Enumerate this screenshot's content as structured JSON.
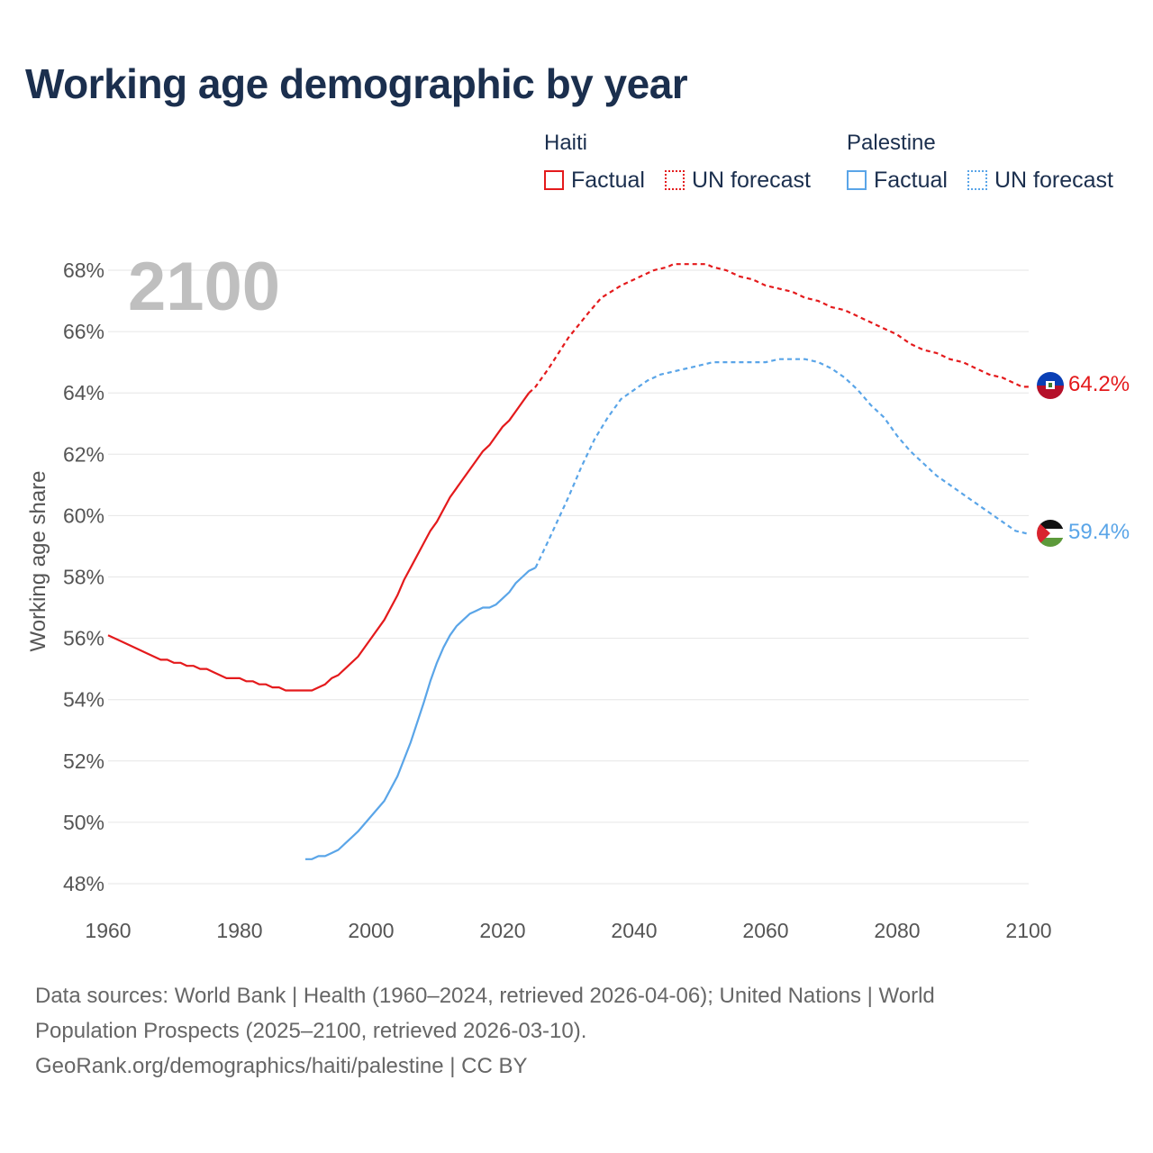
{
  "header": {
    "title": "Working age demographic by year"
  },
  "legend": {
    "groups": [
      {
        "name": "Haiti",
        "factual_label": "Factual",
        "forecast_label": "UN forecast"
      },
      {
        "name": "Palestine",
        "factual_label": "Factual",
        "forecast_label": "UN forecast"
      }
    ]
  },
  "colors": {
    "haiti": "#e41a1c",
    "palestine": "#5aa5e8",
    "grid": "#e6e6e6",
    "axis_text": "#555555",
    "year_watermark": "#bfbfbf"
  },
  "chart_data": {
    "type": "line",
    "title": "Working age demographic by year",
    "ylabel": "Working age share",
    "xlabel": "",
    "xlim": [
      1960,
      2100
    ],
    "ylim": [
      48,
      68
    ],
    "x_ticks": [
      1960,
      1980,
      2000,
      2020,
      2040,
      2060,
      2080,
      2100
    ],
    "x_tick_labels": [
      "1960",
      "1980",
      "2000",
      "2020",
      "2040",
      "2060",
      "2080",
      "2100"
    ],
    "y_ticks": [
      48,
      50,
      52,
      54,
      56,
      58,
      60,
      62,
      64,
      66,
      68
    ],
    "y_tick_labels": [
      "48%",
      "50%",
      "52%",
      "54%",
      "56%",
      "58%",
      "60%",
      "62%",
      "64%",
      "66%",
      "68%"
    ],
    "current_year": "2100",
    "series": [
      {
        "name": "Haiti",
        "color": "#e41a1c",
        "icon": "haiti-flag-icon",
        "end_label": "64.2%",
        "factual": {
          "x": [
            1960,
            1963,
            1966,
            1968,
            1969,
            1970,
            1971,
            1972,
            1973,
            1974,
            1975,
            1976,
            1978,
            1980,
            1981,
            1982,
            1983,
            1984,
            1985,
            1986,
            1987,
            1988,
            1990,
            1991,
            1993,
            1994,
            1995,
            1997,
            1998,
            2000,
            2002,
            2004,
            2005,
            2006,
            2008,
            2009,
            2010,
            2012,
            2013,
            2014,
            2016,
            2017,
            2018,
            2019,
            2020,
            2021,
            2022,
            2023,
            2024
          ],
          "y": [
            56.1,
            55.8,
            55.5,
            55.3,
            55.3,
            55.2,
            55.2,
            55.1,
            55.1,
            55.0,
            55.0,
            54.9,
            54.7,
            54.7,
            54.6,
            54.6,
            54.5,
            54.5,
            54.4,
            54.4,
            54.3,
            54.3,
            54.3,
            54.3,
            54.5,
            54.7,
            54.8,
            55.2,
            55.4,
            56.0,
            56.6,
            57.4,
            57.9,
            58.3,
            59.1,
            59.5,
            59.8,
            60.6,
            60.9,
            61.2,
            61.8,
            62.1,
            62.3,
            62.6,
            62.9,
            63.1,
            63.4,
            63.7,
            64.0
          ]
        },
        "forecast": {
          "x": [
            2024,
            2025,
            2027,
            2030,
            2033,
            2035,
            2038,
            2040,
            2043,
            2045,
            2046,
            2048,
            2050,
            2051,
            2052,
            2054,
            2056,
            2058,
            2060,
            2062,
            2064,
            2066,
            2068,
            2070,
            2072,
            2074,
            2076,
            2078,
            2080,
            2082,
            2084,
            2086,
            2088,
            2090,
            2092,
            2094,
            2096,
            2098,
            2099,
            2100
          ],
          "y": [
            64.0,
            64.2,
            64.8,
            65.8,
            66.6,
            67.1,
            67.5,
            67.7,
            68.0,
            68.1,
            68.2,
            68.2,
            68.2,
            68.2,
            68.1,
            68.0,
            67.8,
            67.7,
            67.5,
            67.4,
            67.3,
            67.1,
            67.0,
            66.8,
            66.7,
            66.5,
            66.3,
            66.1,
            65.9,
            65.6,
            65.4,
            65.3,
            65.1,
            65.0,
            64.8,
            64.6,
            64.5,
            64.3,
            64.2,
            64.2
          ]
        }
      },
      {
        "name": "Palestine",
        "color": "#5aa5e8",
        "icon": "palestine-flag-icon",
        "end_label": "59.4%",
        "factual": {
          "x": [
            1990,
            1991,
            1992,
            1993,
            1994,
            1995,
            1996,
            1997,
            1998,
            2000,
            2002,
            2004,
            2006,
            2008,
            2009,
            2010,
            2011,
            2012,
            2013,
            2014,
            2015,
            2016,
            2017,
            2018,
            2019,
            2020,
            2021,
            2022,
            2023,
            2024,
            2025
          ],
          "y": [
            48.8,
            48.8,
            48.9,
            48.9,
            49.0,
            49.1,
            49.3,
            49.5,
            49.7,
            50.2,
            50.7,
            51.5,
            52.6,
            53.9,
            54.6,
            55.2,
            55.7,
            56.1,
            56.4,
            56.6,
            56.8,
            56.9,
            57.0,
            57.0,
            57.1,
            57.3,
            57.5,
            57.8,
            58.0,
            58.2,
            58.3
          ]
        },
        "forecast": {
          "x": [
            2025,
            2027,
            2030,
            2032,
            2034,
            2036,
            2038,
            2040,
            2042,
            2044,
            2046,
            2048,
            2050,
            2052,
            2055,
            2058,
            2060,
            2062,
            2064,
            2066,
            2068,
            2070,
            2072,
            2074,
            2076,
            2078,
            2080,
            2082,
            2084,
            2086,
            2088,
            2090,
            2092,
            2094,
            2096,
            2098,
            2100
          ],
          "y": [
            58.3,
            59.2,
            60.6,
            61.6,
            62.5,
            63.2,
            63.8,
            64.1,
            64.4,
            64.6,
            64.7,
            64.8,
            64.9,
            65.0,
            65.0,
            65.0,
            65.0,
            65.1,
            65.1,
            65.1,
            65.0,
            64.8,
            64.5,
            64.1,
            63.6,
            63.2,
            62.6,
            62.1,
            61.7,
            61.3,
            61.0,
            60.7,
            60.4,
            60.1,
            59.8,
            59.5,
            59.4
          ]
        }
      }
    ]
  },
  "footer": {
    "line1": "Data sources: World Bank | Health (1960–2024, retrieved 2026-04-06); United Nations | World",
    "line2": "Population Prospects (2025–2100, retrieved 2026-03-10).",
    "line3": "GeoRank.org/demographics/haiti/palestine | CC BY"
  }
}
